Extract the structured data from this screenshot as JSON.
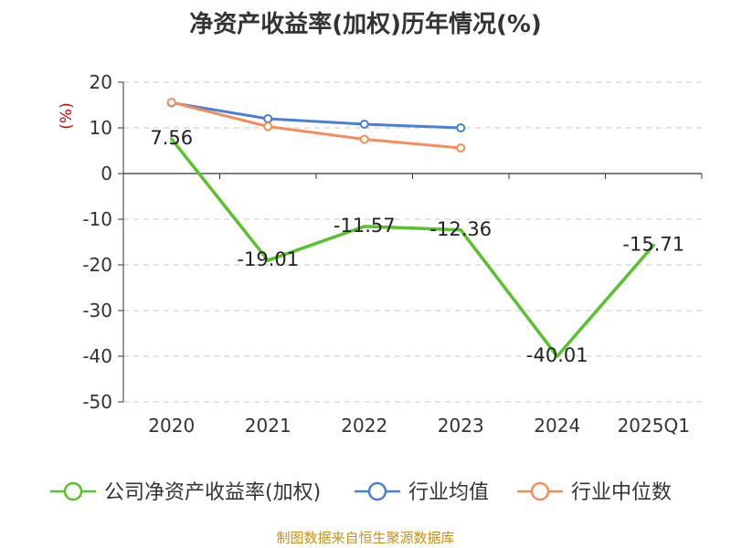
{
  "chart_data": {
    "type": "line",
    "title": "净资产收益率(加权)历年情况(%)",
    "ylabel": "(%)",
    "xlabel": "",
    "categories": [
      "2020",
      "2021",
      "2022",
      "2023",
      "2024",
      "2025Q1"
    ],
    "ylim": [
      -50,
      20
    ],
    "yticks": [
      20,
      10,
      0,
      -10,
      -20,
      -30,
      -40,
      -50
    ],
    "grid": true,
    "legend_position": "bottom",
    "series": [
      {
        "name": "公司净资产收益率(加权)",
        "color": "#5ac12e",
        "values": [
          7.56,
          -19.01,
          -11.57,
          -12.36,
          -40.01,
          -15.71
        ],
        "labels": [
          "7.56",
          "-19.01",
          "-11.57",
          "-12.36",
          "-40.01",
          "-15.71"
        ]
      },
      {
        "name": "行业均值",
        "color": "#4a7fd6",
        "values": [
          15.5,
          12.0,
          10.8,
          10.0,
          null,
          null
        ]
      },
      {
        "name": "行业中位数",
        "color": "#f58d5a",
        "values": [
          15.6,
          10.3,
          7.5,
          5.6,
          null,
          null
        ]
      }
    ]
  },
  "source_note": "制图数据来自恒生聚源数据库"
}
